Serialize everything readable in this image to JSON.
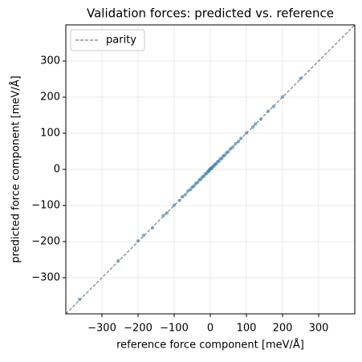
{
  "chart_data": {
    "type": "scatter",
    "title": "Validation forces: predicted vs. reference",
    "x_label": "reference force component [meV/Å]",
    "y_label": "predicted force component [meV/Å]",
    "xlim": [
      -400,
      400
    ],
    "ylim": [
      -400,
      400
    ],
    "xticks": [
      {
        "value": -300,
        "label": "−300"
      },
      {
        "value": -200,
        "label": "−200"
      },
      {
        "value": -100,
        "label": "−100"
      },
      0,
      100,
      200,
      300
    ],
    "yticks": [
      {
        "value": -300,
        "label": "−300"
      },
      {
        "value": -200,
        "label": "−200"
      },
      {
        "value": -100,
        "label": "−100"
      },
      0,
      100,
      200,
      300
    ],
    "grid": true,
    "legend": "upper left",
    "parity": {
      "name": "parity",
      "color": "#808080"
    },
    "series": [
      {
        "color": "#1f77b4",
        "x": [
          -362,
          -255,
          -200,
          -185,
          -160,
          -130,
          -120,
          -100,
          -85,
          -78,
          -70,
          -62,
          -55,
          -50,
          -45,
          -40,
          -35,
          -30,
          -26,
          -22,
          -18,
          -14,
          -10,
          -7,
          -4,
          -2,
          0,
          2,
          4,
          7,
          10,
          13,
          16,
          20,
          24,
          28,
          32,
          36,
          40,
          45,
          50,
          56,
          62,
          70,
          78,
          85,
          100,
          118,
          125,
          140,
          160,
          175,
          200,
          250
        ],
        "y": [
          -360,
          -253,
          -198,
          -183,
          -162,
          -128,
          -121,
          -99,
          -86,
          -76,
          -71,
          -60,
          -56,
          -49,
          -46,
          -39,
          -36,
          -29,
          -27,
          -21,
          -19,
          -13,
          -11,
          -6,
          -5,
          -1,
          1,
          3,
          3,
          8,
          9,
          14,
          15,
          21,
          23,
          29,
          31,
          37,
          39,
          46,
          49,
          57,
          61,
          71,
          77,
          86,
          101,
          117,
          126,
          139,
          161,
          174,
          201,
          252
        ]
      }
    ]
  }
}
